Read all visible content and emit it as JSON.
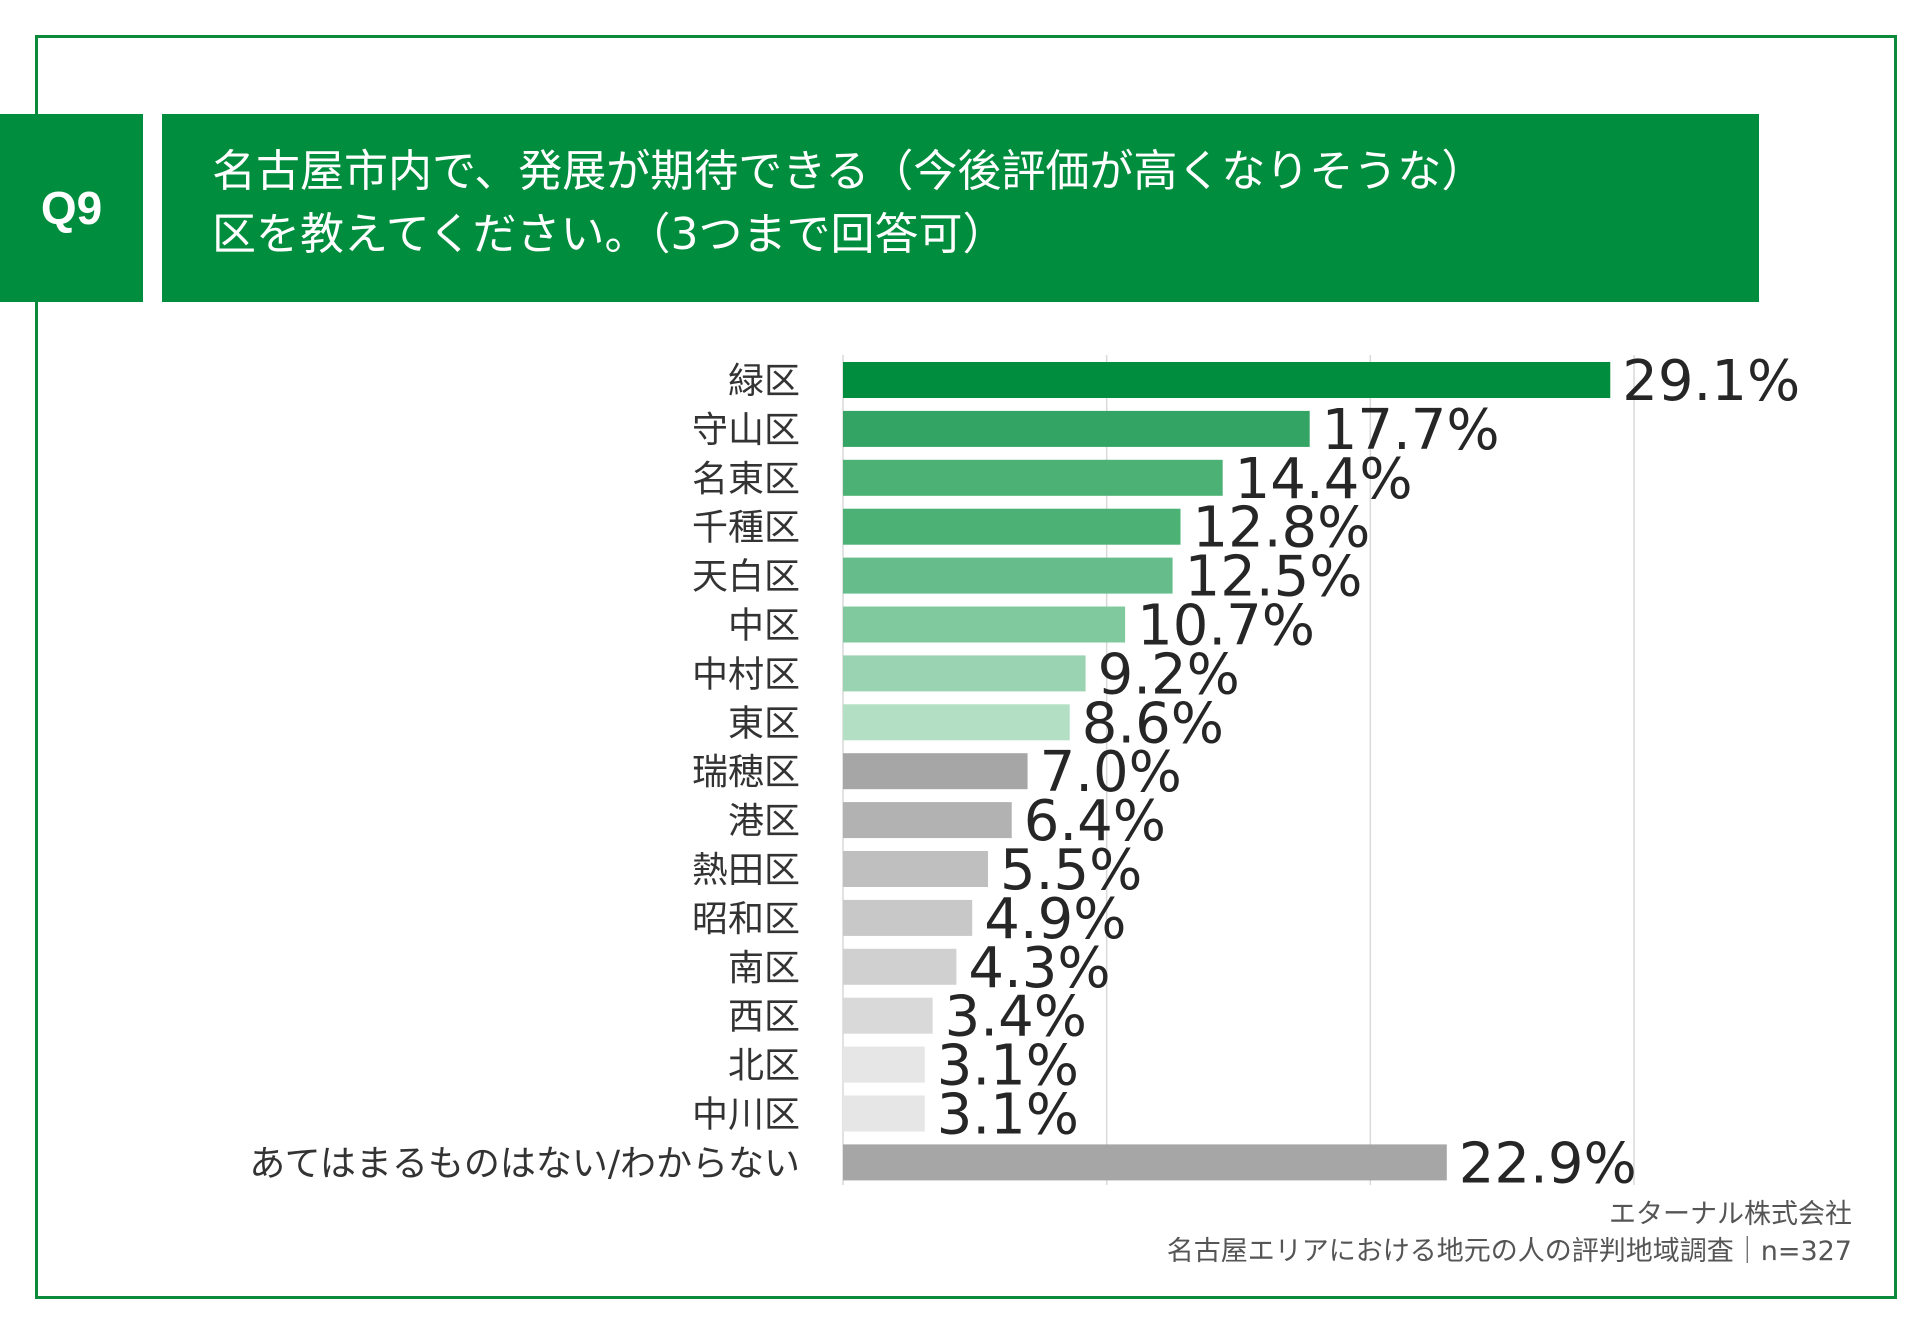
{
  "question": {
    "label": "Q9",
    "title_line1": "名古屋市内で、発展が期待できる（今後評価が高くなりそうな）",
    "title_line2": "区を教えてください。（3つまで回答可）"
  },
  "chart_data": {
    "type": "bar",
    "orientation": "horizontal",
    "categories": [
      "緑区",
      "守山区",
      "名東区",
      "千種区",
      "天白区",
      "中区",
      "中村区",
      "東区",
      "瑞穂区",
      "港区",
      "熱田区",
      "昭和区",
      "南区",
      "西区",
      "北区",
      "中川区",
      "あてはまるものはない/わからない"
    ],
    "values": [
      29.1,
      17.7,
      14.4,
      12.8,
      12.5,
      10.7,
      9.2,
      8.6,
      7.0,
      6.4,
      5.5,
      4.9,
      4.3,
      3.4,
      3.1,
      3.1,
      22.9
    ],
    "value_labels": [
      "29.1%",
      "17.7%",
      "14.4%",
      "12.8%",
      "12.5%",
      "10.7%",
      "9.2%",
      "8.6%",
      "7.0%",
      "6.4%",
      "5.5%",
      "4.9%",
      "4.3%",
      "3.4%",
      "3.1%",
      "3.1%",
      "22.9%"
    ],
    "colors": [
      "#008d3d",
      "#33a463",
      "#4cb175",
      "#4cb175",
      "#66bc8a",
      "#80c89e",
      "#99d3b1",
      "#b3dfc5",
      "#a6a6a6",
      "#b2b2b2",
      "#bfbfbf",
      "#c8c8c8",
      "#d0d0d0",
      "#d9d9d9",
      "#e6e6e6",
      "#e6e6e6",
      "#a6a6a6"
    ],
    "xlim": [
      0,
      30
    ],
    "gridlines_at": [
      10,
      20,
      30
    ],
    "grid": true,
    "unit": "%"
  },
  "source": {
    "line1": "エターナル株式会社",
    "line2": "名古屋エリアにおける地元の人の評判地域調査｜n=327"
  }
}
